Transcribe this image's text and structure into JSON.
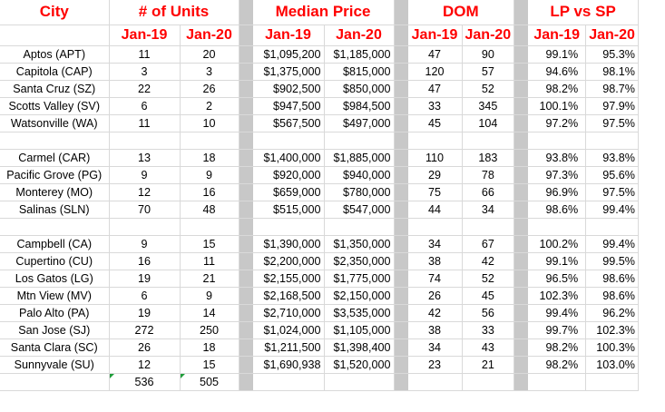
{
  "headers": {
    "city": "City",
    "units": "# of Units",
    "median": "Median Price",
    "dom": "DOM",
    "lpsp": "LP vs SP",
    "jan19": "Jan-19",
    "jan20": "Jan-20"
  },
  "rows": [
    {
      "city": "Aptos (APT)",
      "u19": "11",
      "u20": "20",
      "p19": "$1,095,200",
      "p20": "$1,185,000",
      "d19": "47",
      "d20": "90",
      "l19": "99.1%",
      "l20": "95.3%"
    },
    {
      "city": "Capitola (CAP)",
      "u19": "3",
      "u20": "3",
      "p19": "$1,375,000",
      "p20": "$815,000",
      "d19": "120",
      "d20": "57",
      "l19": "94.6%",
      "l20": "98.1%"
    },
    {
      "city": "Santa Cruz (SZ)",
      "u19": "22",
      "u20": "26",
      "p19": "$902,500",
      "p20": "$850,000",
      "d19": "47",
      "d20": "52",
      "l19": "98.2%",
      "l20": "98.7%"
    },
    {
      "city": "Scotts Valley (SV)",
      "u19": "6",
      "u20": "2",
      "p19": "$947,500",
      "p20": "$984,500",
      "d19": "33",
      "d20": "345",
      "l19": "100.1%",
      "l20": "97.9%"
    },
    {
      "city": "Watsonville (WA)",
      "u19": "11",
      "u20": "10",
      "p19": "$567,500",
      "p20": "$497,000",
      "d19": "45",
      "d20": "104",
      "l19": "97.2%",
      "l20": "97.5%"
    },
    {
      "city": "",
      "u19": "",
      "u20": "",
      "p19": "",
      "p20": "",
      "d19": "",
      "d20": "",
      "l19": "",
      "l20": ""
    },
    {
      "city": "Carmel (CAR)",
      "u19": "13",
      "u20": "18",
      "p19": "$1,400,000",
      "p20": "$1,885,000",
      "d19": "110",
      "d20": "183",
      "l19": "93.8%",
      "l20": "93.8%"
    },
    {
      "city": "Pacific Grove (PG)",
      "u19": "9",
      "u20": "9",
      "p19": "$920,000",
      "p20": "$940,000",
      "d19": "29",
      "d20": "78",
      "l19": "97.3%",
      "l20": "95.6%"
    },
    {
      "city": "Monterey (MO)",
      "u19": "12",
      "u20": "16",
      "p19": "$659,000",
      "p20": "$780,000",
      "d19": "75",
      "d20": "66",
      "l19": "96.9%",
      "l20": "97.5%"
    },
    {
      "city": "Salinas (SLN)",
      "u19": "70",
      "u20": "48",
      "p19": "$515,000",
      "p20": "$547,000",
      "d19": "44",
      "d20": "34",
      "l19": "98.6%",
      "l20": "99.4%"
    },
    {
      "city": "",
      "u19": "",
      "u20": "",
      "p19": "",
      "p20": "",
      "d19": "",
      "d20": "",
      "l19": "",
      "l20": ""
    },
    {
      "city": "Campbell (CA)",
      "u19": "9",
      "u20": "15",
      "p19": "$1,390,000",
      "p20": "$1,350,000",
      "d19": "34",
      "d20": "67",
      "l19": "100.2%",
      "l20": "99.4%"
    },
    {
      "city": "Cupertino (CU)",
      "u19": "16",
      "u20": "11",
      "p19": "$2,200,000",
      "p20": "$2,350,000",
      "d19": "38",
      "d20": "42",
      "l19": "99.1%",
      "l20": "99.5%"
    },
    {
      "city": "Los Gatos (LG)",
      "u19": "19",
      "u20": "21",
      "p19": "$2,155,000",
      "p20": "$1,775,000",
      "d19": "74",
      "d20": "52",
      "l19": "96.5%",
      "l20": "98.6%"
    },
    {
      "city": "Mtn View (MV)",
      "u19": "6",
      "u20": "9",
      "p19": "$2,168,500",
      "p20": "$2,150,000",
      "d19": "26",
      "d20": "45",
      "l19": "102.3%",
      "l20": "98.6%"
    },
    {
      "city": "Palo Alto (PA)",
      "u19": "19",
      "u20": "14",
      "p19": "$2,710,000",
      "p20": "$3,535,000",
      "d19": "42",
      "d20": "56",
      "l19": "99.4%",
      "l20": "96.2%"
    },
    {
      "city": "San Jose (SJ)",
      "u19": "272",
      "u20": "250",
      "p19": "$1,024,000",
      "p20": "$1,105,000",
      "d19": "38",
      "d20": "33",
      "l19": "99.7%",
      "l20": "102.3%"
    },
    {
      "city": "Santa Clara (SC)",
      "u19": "26",
      "u20": "18",
      "p19": "$1,211,500",
      "p20": "$1,398,400",
      "d19": "34",
      "d20": "43",
      "l19": "98.2%",
      "l20": "100.3%"
    },
    {
      "city": "Sunnyvale (SU)",
      "u19": "12",
      "u20": "15",
      "p19": "$1,690,938",
      "p20": "$1,520,000",
      "d19": "23",
      "d20": "21",
      "l19": "98.2%",
      "l20": "103.0%"
    }
  ],
  "totals": {
    "u19": "536",
    "u20": "505"
  }
}
